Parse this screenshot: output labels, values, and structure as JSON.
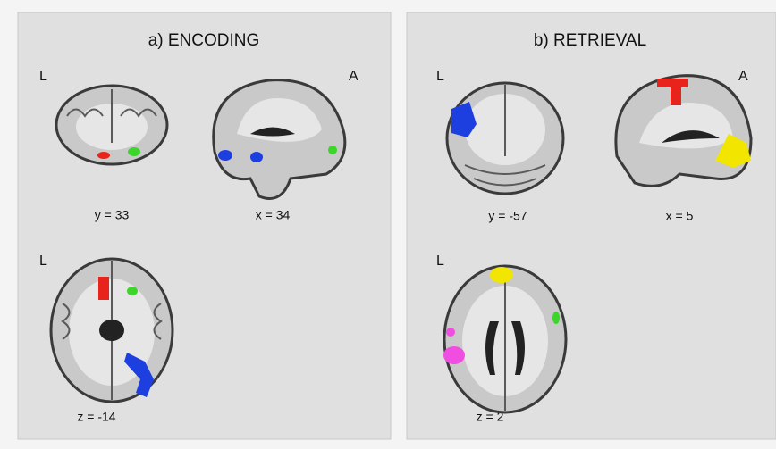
{
  "panels": [
    {
      "title": "a) ENCODING",
      "orientation_labels": [
        "L",
        "A",
        "L"
      ],
      "slices": [
        "y = 33",
        "x = 34",
        "z = -14"
      ]
    },
    {
      "title": "b) RETRIEVAL",
      "orientation_labels": [
        "L",
        "A",
        "L"
      ],
      "slices": [
        "y = -57",
        "x = 5",
        "z = 2"
      ]
    }
  ]
}
